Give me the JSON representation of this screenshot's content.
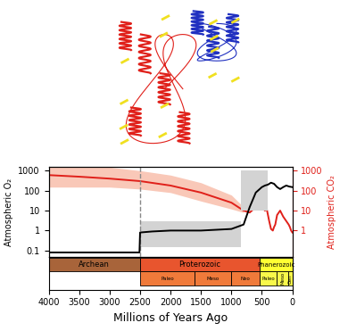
{
  "chart_data": {
    "type": "line",
    "xlabel": "Millions of Years Ago",
    "ylabel": "Atmospheric O₂",
    "y2label": "Atmospheric CO₂",
    "xlim": [
      4000,
      0
    ],
    "xticks": [
      4000,
      3500,
      3000,
      2500,
      2000,
      1500,
      1000,
      500,
      0
    ],
    "log": "y",
    "ylim": [
      0.05,
      1500
    ],
    "yticks": [
      0.1,
      1,
      10,
      100,
      1000
    ],
    "y2lim": [
      0.05,
      1500
    ],
    "y2ticks": [
      1,
      10,
      100,
      1000
    ],
    "series": [
      {
        "axis": "y",
        "color": "#000000",
        "x": [
          4000,
          3500,
          3000,
          2510,
          2500,
          2300,
          2000,
          1500,
          1000,
          800,
          700,
          600,
          500,
          450,
          400,
          350,
          300,
          250,
          200,
          150,
          100,
          50,
          0
        ],
        "values": [
          0.08,
          0.08,
          0.08,
          0.08,
          0.8,
          0.9,
          1,
          1,
          1.2,
          2,
          15,
          80,
          150,
          180,
          200,
          250,
          220,
          150,
          120,
          150,
          180,
          160,
          150
        ]
      },
      {
        "axis": "y2",
        "color": "#e0201a",
        "x": [
          4000,
          3500,
          3000,
          2500,
          2000,
          1500,
          1000,
          800,
          700,
          600,
          550,
          500,
          450,
          420,
          400,
          380,
          350,
          320,
          300,
          280,
          250,
          200,
          150,
          100,
          60,
          40,
          20,
          0
        ],
        "values": [
          600,
          500,
          400,
          300,
          180,
          80,
          25,
          10,
          8,
          15,
          12,
          15,
          10,
          12,
          6,
          3,
          1.2,
          1,
          1.5,
          2,
          6,
          10,
          5,
          3,
          2,
          1.5,
          1,
          0.8
        ]
      }
    ],
    "co2_range": {
      "color": "#f9c8b8",
      "x": [
        4000,
        3000,
        2500,
        2000,
        1500,
        1000,
        800
      ],
      "low": [
        150,
        150,
        120,
        80,
        30,
        12,
        8
      ],
      "high": [
        2000,
        1500,
        1000,
        600,
        250,
        60,
        15
      ]
    },
    "o2_ranges": [
      {
        "color": "#d3d3d3",
        "x0": 2500,
        "x1": 850,
        "low": 0.15,
        "high": 3
      },
      {
        "color": "#d3d3d3",
        "x0": 850,
        "x1": 400,
        "low": 10,
        "high": 1000
      }
    ],
    "vertical_line": 2500,
    "eons": [
      {
        "name": "Archean",
        "start": 4000,
        "end": 2500,
        "color": "#a8643a"
      },
      {
        "name": "Proterozoic",
        "start": 2500,
        "end": 541,
        "color": "#e8552e"
      },
      {
        "name": "Phanerozoic",
        "start": 541,
        "end": 0,
        "color": "#ffff33"
      }
    ],
    "eras": [
      {
        "name": "Paleo",
        "start": 2500,
        "end": 1600,
        "color": "#f07a3a"
      },
      {
        "name": "Meso",
        "start": 1600,
        "end": 1000,
        "color": "#f07a3a"
      },
      {
        "name": "Neo",
        "start": 1000,
        "end": 541,
        "color": "#f07a3a"
      },
      {
        "name": "Paleo",
        "start": 541,
        "end": 252,
        "color": "#f8f84a"
      },
      {
        "name": "Meso",
        "start": 252,
        "end": 66,
        "color": "#f8f84a"
      },
      {
        "name": "Cen",
        "start": 66,
        "end": 0,
        "color": "#f8f84a"
      }
    ]
  }
}
